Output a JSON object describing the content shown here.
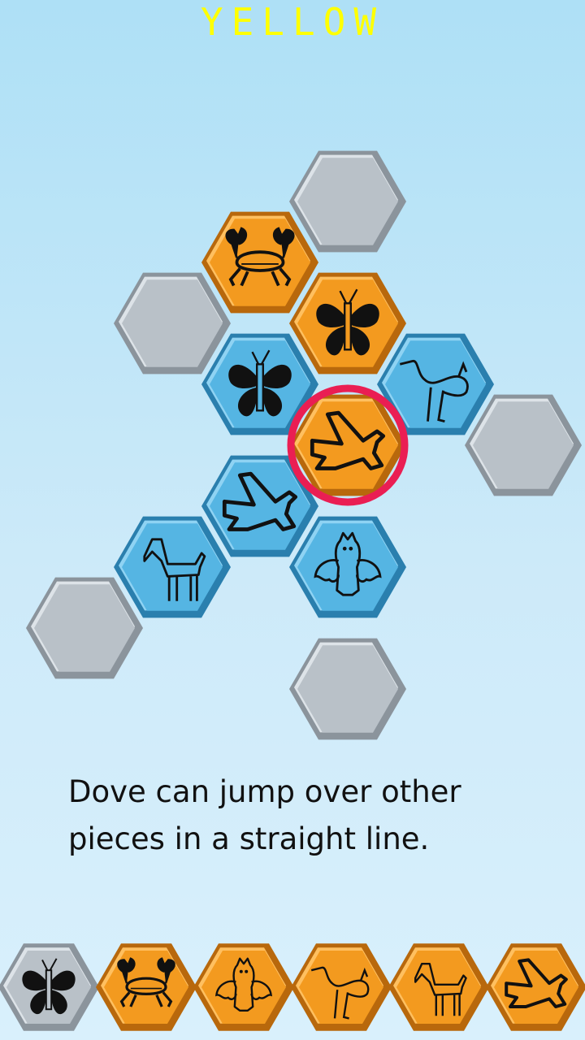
{
  "player_label": "YELLOW",
  "hint_text": "Dove can jump over other pieces in a straight line.",
  "colors": {
    "orange": "#f39a1f",
    "blue": "#55b5e3",
    "grey": "#b9c1c8",
    "selection": "#ea1e53"
  },
  "board": {
    "cells": [
      {
        "name": "empty-cell-1",
        "piece": null,
        "color": "grey"
      },
      {
        "name": "empty-cell-2",
        "piece": null,
        "color": "grey"
      },
      {
        "name": "yellow-butterfly",
        "piece": "butterfly",
        "color": "orange"
      },
      {
        "name": "yellow-crab",
        "piece": "crab",
        "color": "orange"
      },
      {
        "name": "yellow-dove",
        "piece": "dove",
        "color": "orange",
        "selected": true
      },
      {
        "name": "blue-butterfly",
        "piece": "butterfly",
        "color": "blue"
      },
      {
        "name": "blue-crane",
        "piece": "crane",
        "color": "blue"
      },
      {
        "name": "empty-cell-3",
        "piece": null,
        "color": "grey"
      },
      {
        "name": "blue-horse",
        "piece": "horse",
        "color": "blue"
      },
      {
        "name": "blue-owl",
        "piece": "owl",
        "color": "blue"
      },
      {
        "name": "empty-cell-4",
        "piece": null,
        "color": "grey"
      },
      {
        "name": "blue-dove",
        "piece": "dove",
        "color": "blue"
      },
      {
        "name": "empty-cell-5",
        "piece": null,
        "color": "grey"
      }
    ]
  },
  "tray": {
    "pieces": [
      {
        "name": "tray-butterfly",
        "piece": "butterfly",
        "color": "grey"
      },
      {
        "name": "tray-crab",
        "piece": "crab",
        "color": "orange"
      },
      {
        "name": "tray-owl",
        "piece": "owl",
        "color": "orange"
      },
      {
        "name": "tray-crane",
        "piece": "crane",
        "color": "orange"
      },
      {
        "name": "tray-horse",
        "piece": "horse",
        "color": "orange"
      },
      {
        "name": "tray-dove",
        "piece": "dove",
        "color": "orange"
      }
    ]
  }
}
